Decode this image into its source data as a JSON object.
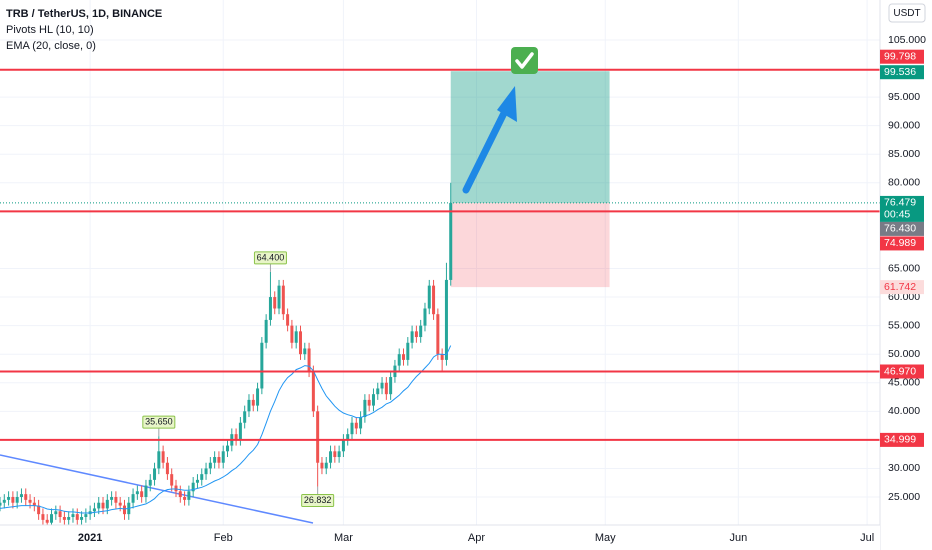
{
  "chart_data": {
    "type": "candlestick",
    "title": "TRB / TetherUS, 1D, BINANCE",
    "indicators": [
      "Pivots HL (10, 10)",
      "EMA (20, close, 0)"
    ],
    "currency": "USDT",
    "colors": {
      "up": "#26a69a",
      "down": "#ef5350",
      "ema": "#2196f3",
      "level": "#f23645",
      "target": "#089981"
    },
    "open": [
      23.5,
      24,
      24.5,
      25,
      24,
      25,
      25.5,
      24.5,
      24,
      23.5,
      22,
      21,
      20.5,
      22,
      22.5,
      21.5,
      21,
      21.5,
      22,
      21,
      21.5,
      22,
      22.5,
      23,
      24,
      23,
      24.5,
      25,
      24,
      23.5,
      22,
      24,
      25.5,
      26,
      25,
      27,
      28,
      30,
      33,
      31,
      29,
      27,
      26,
      25,
      24.5,
      26,
      27.5,
      28,
      29,
      30,
      31,
      32,
      31,
      33,
      34,
      36,
      35,
      38,
      40,
      42,
      41,
      44,
      52,
      56,
      60,
      58,
      62,
      57,
      55,
      52,
      54,
      50,
      51,
      47,
      40,
      31,
      30,
      31,
      33,
      32,
      33,
      35,
      36,
      38,
      37,
      39,
      42,
      41,
      43,
      44,
      45,
      43,
      46,
      48,
      50,
      49,
      52,
      54,
      53,
      55,
      58,
      62,
      57,
      50,
      49,
      63
    ],
    "high": [
      25,
      25.5,
      26,
      26,
      26,
      26.5,
      26.5,
      25.5,
      25,
      24.5,
      23,
      22,
      23,
      23.5,
      23.5,
      22.5,
      22.5,
      23,
      23,
      22.5,
      23,
      23.5,
      24,
      25,
      25,
      25.5,
      26,
      26,
      25,
      24.5,
      25,
      26.5,
      27,
      27,
      28,
      29,
      31,
      35.65,
      34,
      32,
      30,
      28,
      27,
      26,
      27,
      28.5,
      29,
      30,
      31,
      32,
      33,
      33,
      34,
      35,
      37,
      37,
      39,
      41,
      43,
      43,
      45,
      53,
      57,
      64.4,
      61,
      63,
      63,
      58,
      56,
      55,
      55,
      52,
      52,
      48,
      41,
      32,
      32,
      34,
      34,
      34,
      36,
      37,
      39,
      39,
      40,
      43,
      43,
      44,
      45,
      46,
      46,
      47,
      49,
      51,
      51,
      53,
      55,
      55,
      56,
      59,
      63,
      63,
      58,
      51,
      66,
      80
    ],
    "low": [
      22.5,
      23,
      23.5,
      23,
      23,
      24,
      23.5,
      23,
      22.5,
      21,
      20,
      19.5,
      19.5,
      21,
      20.5,
      20,
      20,
      20.5,
      20,
      20,
      20.5,
      21,
      21.5,
      22,
      22,
      22,
      23.5,
      23,
      22.5,
      21,
      21,
      23,
      24.5,
      24,
      24,
      26,
      27,
      29,
      30,
      28,
      26,
      25,
      24,
      23.5,
      23.5,
      25,
      26.5,
      27,
      28,
      29,
      30,
      30,
      30,
      32,
      33,
      34,
      34,
      37,
      39,
      40,
      40,
      43,
      51,
      55,
      57,
      57,
      56,
      54,
      51,
      51,
      49,
      49,
      46,
      39,
      26.832,
      29,
      29,
      30,
      31,
      31,
      32,
      34,
      35,
      36,
      36,
      38,
      40,
      40,
      42,
      43,
      42,
      42,
      45,
      47,
      48,
      48,
      51,
      52,
      52,
      54,
      57,
      56,
      49,
      47,
      48,
      62
    ],
    "close": [
      24,
      24.5,
      25,
      24,
      25,
      25.5,
      24.5,
      24,
      23.5,
      22,
      21,
      20.5,
      22,
      22.5,
      21.5,
      21,
      21.5,
      22,
      21,
      21.5,
      22,
      22.5,
      23,
      24,
      23,
      24.5,
      25,
      24,
      23.5,
      22,
      24,
      25.5,
      26,
      25,
      27,
      28,
      30,
      33,
      31,
      29,
      27,
      26,
      25,
      24.5,
      26,
      27.5,
      28,
      29,
      30,
      31,
      32,
      31,
      33,
      34,
      36,
      35,
      38,
      40,
      42,
      41,
      44,
      52,
      56,
      60,
      58,
      62,
      57,
      55,
      52,
      54,
      50,
      51,
      47,
      40,
      31,
      30,
      31,
      33,
      32,
      33,
      35,
      36,
      38,
      37,
      39,
      42,
      41,
      43,
      44,
      45,
      43,
      46,
      48,
      50,
      49,
      52,
      54,
      53,
      55,
      58,
      62,
      57,
      50,
      49,
      63,
      76.479
    ],
    "ema": [
      23,
      23.1,
      23.2,
      23.3,
      23.4,
      23.5,
      23.5,
      23.5,
      23.5,
      23.4,
      23.2,
      22.9,
      22.8,
      22.8,
      22.7,
      22.5,
      22.4,
      22.4,
      22.3,
      22.2,
      22.2,
      22.2,
      22.3,
      22.4,
      22.5,
      22.6,
      22.8,
      22.9,
      23,
      22.9,
      23,
      23.2,
      23.4,
      23.6,
      23.8,
      24.2,
      24.7,
      25.5,
      26,
      26.3,
      26.4,
      26.4,
      26.3,
      26.2,
      26.2,
      26.3,
      26.5,
      26.7,
      27,
      27.4,
      27.8,
      28.1,
      28.5,
      29,
      29.6,
      30.1,
      30.8,
      31.6,
      32.5,
      33.2,
      34.2,
      35.9,
      37.9,
      40,
      41.7,
      43.6,
      44.9,
      45.9,
      46.5,
      47.3,
      47.6,
      48,
      47.9,
      47.1,
      45.5,
      44,
      42.7,
      41.8,
      40.9,
      40.2,
      39.7,
      39.4,
      39.2,
      38.9,
      38.9,
      39.2,
      39.4,
      39.8,
      40.3,
      40.7,
      41.3,
      41.6,
      42.2,
      42.8,
      43.6,
      44.2,
      45.2,
      46.1,
      46.8,
      47.6,
      48.4,
      49.5,
      50,
      50,
      49.9,
      51.5
    ],
    "pivots": [
      {
        "index": 37,
        "value": 35.65,
        "label": "35.650",
        "side": "high"
      },
      {
        "index": 63,
        "value": 64.4,
        "label": "64.400",
        "side": "high"
      },
      {
        "index": 74,
        "value": 26.832,
        "label": "26.832",
        "side": "low"
      }
    ],
    "levels": [
      {
        "value": 99.798,
        "label": "99.798"
      },
      {
        "value": 74.989,
        "label": "74.989"
      },
      {
        "value": 46.97,
        "label": "46.970"
      },
      {
        "value": 34.999,
        "label": "34.999"
      }
    ],
    "position": {
      "from": 105,
      "to": 142,
      "entry": {
        "value": 76.479,
        "label": "76.479"
      },
      "target": {
        "value": 99.536,
        "label": "99.536"
      },
      "stop": {
        "value": 61.742,
        "label": "61.742"
      }
    },
    "countdown": "00:45",
    "alt_price": {
      "value": 76.43,
      "label": "76.430"
    },
    "xlim": [
      0,
      205
    ],
    "xticks": [
      {
        "value": 21,
        "label": "2021"
      },
      {
        "value": 52,
        "label": "Feb"
      },
      {
        "value": 80,
        "label": "Mar"
      },
      {
        "value": 111,
        "label": "Apr"
      },
      {
        "value": 141,
        "label": "May"
      },
      {
        "value": 172,
        "label": "Jun"
      },
      {
        "value": 202,
        "label": "Jul"
      }
    ],
    "ylim": [
      20.1,
      112
    ],
    "yticks": [
      {
        "value": 105,
        "label": "105.000"
      },
      {
        "value": 95,
        "label": "95.000"
      },
      {
        "value": 90,
        "label": "90.000"
      },
      {
        "value": 85,
        "label": "85.000"
      },
      {
        "value": 80,
        "label": "80.000"
      },
      {
        "value": 65,
        "label": "65.000"
      },
      {
        "value": 60,
        "label": "60.000"
      },
      {
        "value": 55,
        "label": "55.000"
      },
      {
        "value": 50,
        "label": "50.000"
      },
      {
        "value": 45,
        "label": "45.000"
      },
      {
        "value": 40,
        "label": "40.000"
      },
      {
        "value": 30,
        "label": "30.000"
      },
      {
        "value": 25,
        "label": "25.000"
      }
    ],
    "grid": true
  }
}
